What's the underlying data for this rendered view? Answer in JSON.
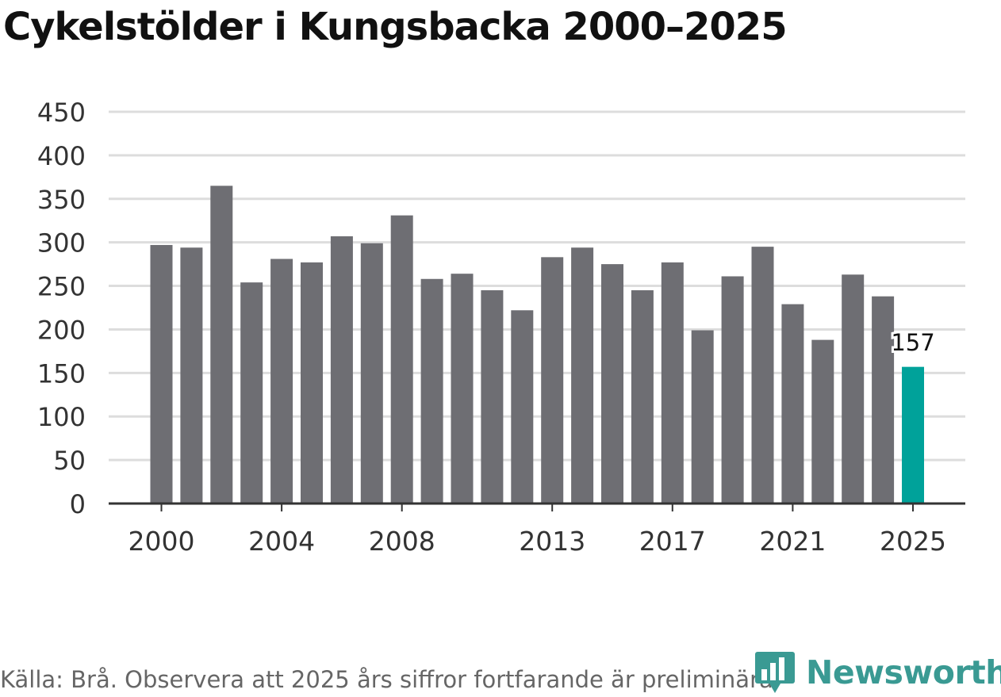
{
  "chart_data": {
    "type": "bar",
    "title": "Cykelstölder i Kungsbacka 2000–2025",
    "categories": [
      2000,
      2001,
      2002,
      2003,
      2004,
      2005,
      2006,
      2007,
      2008,
      2009,
      2010,
      2011,
      2012,
      2013,
      2014,
      2015,
      2016,
      2017,
      2018,
      2019,
      2020,
      2021,
      2022,
      2023,
      2024,
      2025
    ],
    "values": [
      297,
      294,
      365,
      254,
      281,
      277,
      307,
      299,
      331,
      258,
      264,
      245,
      222,
      283,
      294,
      275,
      245,
      277,
      199,
      261,
      295,
      229,
      188,
      263,
      238,
      157
    ],
    "ylim": [
      0,
      450
    ],
    "yticks": [
      0,
      50,
      100,
      150,
      200,
      250,
      300,
      350,
      400,
      450
    ],
    "xtick_labels": [
      "2000",
      "2004",
      "2008",
      "2013",
      "2017",
      "2021",
      "2025"
    ],
    "highlight": {
      "category": 2025,
      "label": "157"
    },
    "xlabel": "",
    "ylabel": "",
    "grid": true,
    "colors": {
      "bar": "#6e6e73",
      "highlight": "#00a29a",
      "grid": "#dddddd",
      "axis": "#333333"
    }
  },
  "footer": {
    "source": "Källa: Brå. Observera att 2025 års siffror fortfarande är preliminära."
  },
  "brand": {
    "name": "Newsworthy",
    "logo_icon": "bar-chart-speech-bubble-icon",
    "color": "#3a9a93"
  }
}
